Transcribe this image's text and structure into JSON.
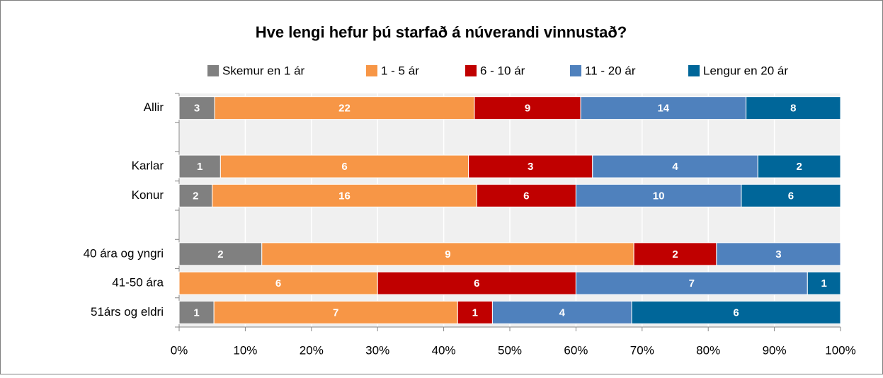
{
  "chart_data": {
    "type": "bar",
    "orientation": "horizontal",
    "stack": "percent",
    "title": "Hve lengi hefur þú starfað á núverandi vinnustað?",
    "categories": [
      "Allir",
      null,
      "Karlar",
      "Konur",
      null,
      "40 ára og yngri",
      "41-50 ára",
      "51árs og eldri"
    ],
    "series": [
      {
        "name": "Skemur en 1 ár",
        "color": "#808080",
        "values": [
          3,
          null,
          1,
          2,
          null,
          2,
          0,
          1
        ]
      },
      {
        "name": "1 - 5 ár",
        "color": "#f79646",
        "values": [
          22,
          null,
          6,
          16,
          null,
          9,
          6,
          7
        ]
      },
      {
        "name": "6 - 10 ár",
        "color": "#c00000",
        "values": [
          9,
          null,
          3,
          6,
          null,
          2,
          6,
          1
        ]
      },
      {
        "name": "11 - 20 ár",
        "color": "#4f81bd",
        "values": [
          14,
          null,
          4,
          10,
          null,
          3,
          7,
          4
        ]
      },
      {
        "name": "Lengur en 20 ár",
        "color": "#006699",
        "values": [
          8,
          null,
          2,
          6,
          null,
          0,
          1,
          6
        ]
      }
    ],
    "xlim": [
      0,
      100
    ],
    "xticks": [
      {
        "value": 0,
        "label": "0%"
      },
      {
        "value": 10,
        "label": "10%"
      },
      {
        "value": 20,
        "label": "20%"
      },
      {
        "value": 30,
        "label": "30%"
      },
      {
        "value": 40,
        "label": "40%"
      },
      {
        "value": 50,
        "label": "50%"
      },
      {
        "value": 60,
        "label": "60%"
      },
      {
        "value": 70,
        "label": "70%"
      },
      {
        "value": 80,
        "label": "80%"
      },
      {
        "value": 90,
        "label": "90%"
      },
      {
        "value": 100,
        "label": "100%"
      }
    ],
    "grid": true,
    "legend": "top"
  }
}
